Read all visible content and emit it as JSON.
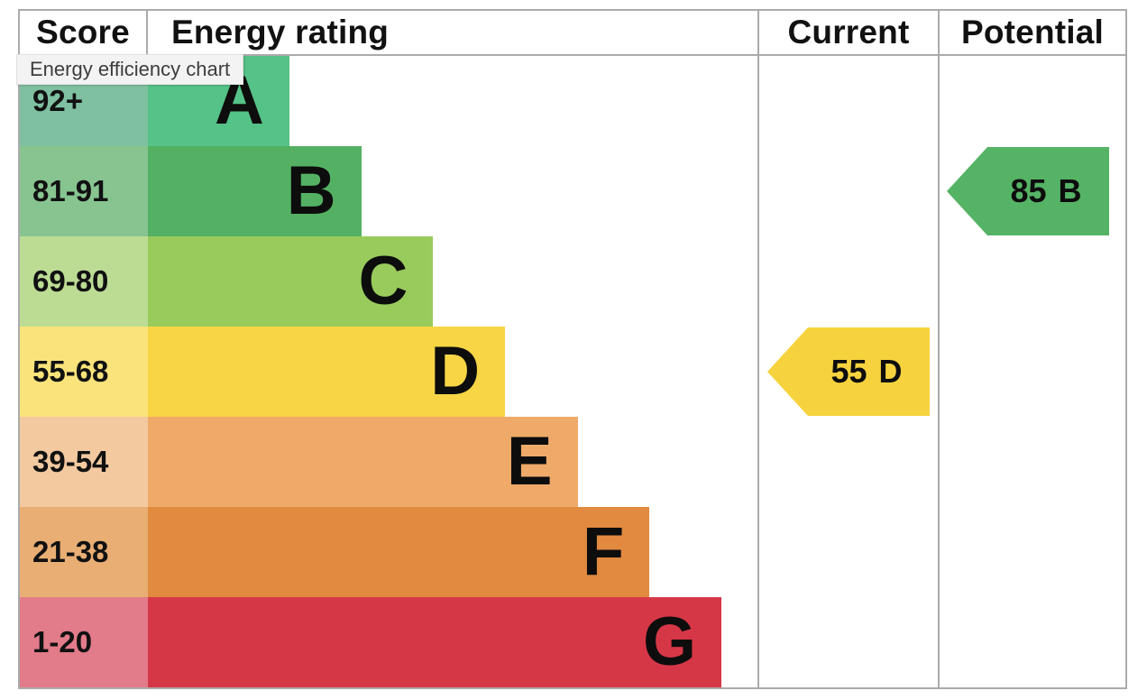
{
  "tooltip": "Energy efficiency chart",
  "header": {
    "score": "Score",
    "rating": "Energy rating",
    "current": "Current",
    "potential": "Potential"
  },
  "border_color": "#ababab",
  "chart_data": {
    "type": "bar",
    "title": "Energy efficiency chart",
    "columns": [
      "Score",
      "Energy rating",
      "Current",
      "Potential"
    ],
    "bands": [
      {
        "grade": "A",
        "range": "92+",
        "bar_color": "#55c287",
        "score_cell_color": "#7fc0a1",
        "width_pct": 23.2
      },
      {
        "grade": "B",
        "range": "81-91",
        "bar_color": "#54b164",
        "score_cell_color": "#87c490",
        "width_pct": 35.0
      },
      {
        "grade": "C",
        "range": "69-80",
        "bar_color": "#99ca5c",
        "score_cell_color": "#bcdc94",
        "width_pct": 46.8
      },
      {
        "grade": "D",
        "range": "55-68",
        "bar_color": "#f7d545",
        "score_cell_color": "#fae37b",
        "width_pct": 58.6
      },
      {
        "grade": "E",
        "range": "39-54",
        "bar_color": "#efaa69",
        "score_cell_color": "#f3c9a0",
        "width_pct": 70.5
      },
      {
        "grade": "F",
        "range": "21-38",
        "bar_color": "#e18a40",
        "score_cell_color": "#e9ae73",
        "width_pct": 82.3
      },
      {
        "grade": "G",
        "range": "1-20",
        "bar_color": "#d63747",
        "score_cell_color": "#e27b8a",
        "width_pct": 94.1
      }
    ],
    "current": {
      "value": "55",
      "grade": "D",
      "color": "#f6d33e",
      "band_index": 3
    },
    "potential": {
      "value": "85",
      "grade": "B",
      "color": "#55b365",
      "band_index": 1
    }
  }
}
